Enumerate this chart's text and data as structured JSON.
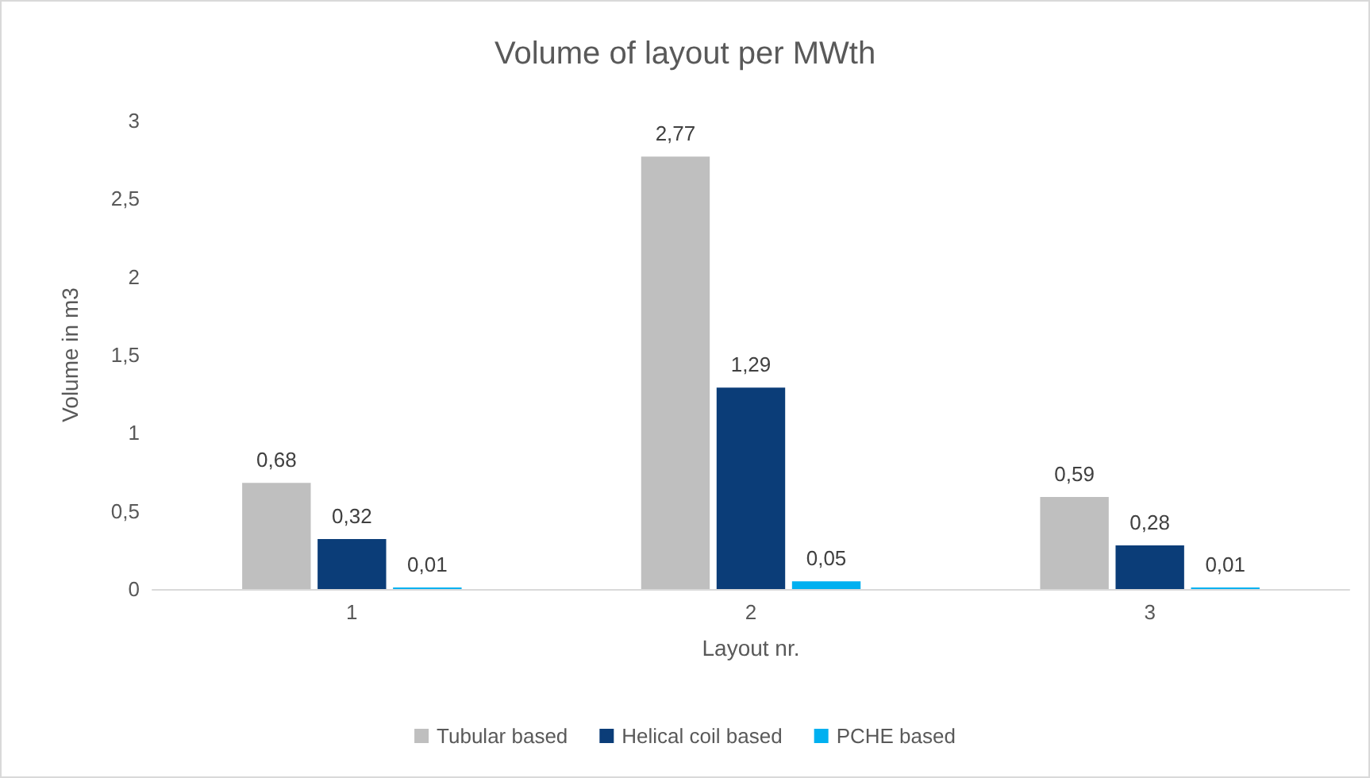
{
  "chart_data": {
    "type": "bar",
    "title": "Volume of layout per MWth",
    "xlabel": "Layout nr.",
    "ylabel": "Volume in m3",
    "categories": [
      "1",
      "2",
      "3"
    ],
    "series": [
      {
        "name": "Tubular based",
        "color": "#bfbfbf",
        "values": [
          0.68,
          2.77,
          0.59
        ],
        "value_labels": [
          "0,68",
          "2,77",
          "0,59"
        ]
      },
      {
        "name": "Helical coil based",
        "color": "#0b3d78",
        "values": [
          0.32,
          1.29,
          0.28
        ],
        "value_labels": [
          "0,32",
          "1,29",
          "0,28"
        ]
      },
      {
        "name": "PCHE based",
        "color": "#00b0f0",
        "values": [
          0.01,
          0.05,
          0.01
        ],
        "value_labels": [
          "0,01",
          "0,05",
          "0,01"
        ]
      }
    ],
    "ylim": [
      0,
      3
    ],
    "yticks": [
      {
        "value": 0,
        "label": "0"
      },
      {
        "value": 0.5,
        "label": "0,5"
      },
      {
        "value": 1,
        "label": "1"
      },
      {
        "value": 1.5,
        "label": "1,5"
      },
      {
        "value": 2,
        "label": "2"
      },
      {
        "value": 2.5,
        "label": "2,5"
      },
      {
        "value": 3,
        "label": "3"
      }
    ],
    "grid": false,
    "legend": "bottom"
  }
}
